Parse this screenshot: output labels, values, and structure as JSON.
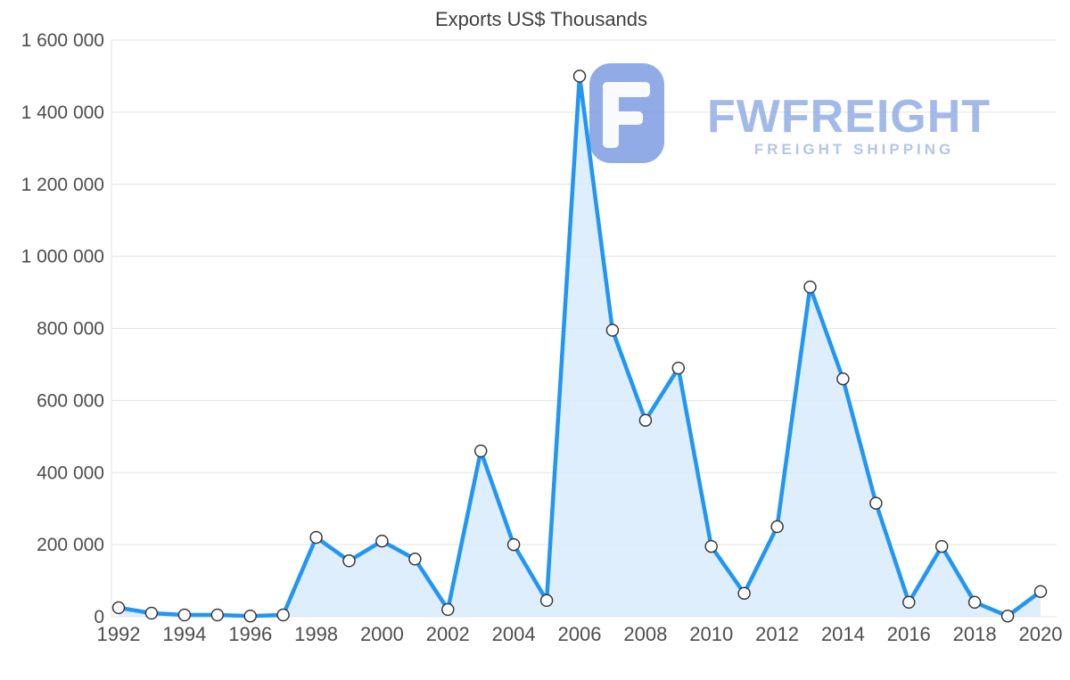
{
  "watermark": {
    "brand": "FWFREIGHT",
    "tagline": "FREIGHT SHIPPING"
  },
  "colors": {
    "line": "#2196f3",
    "fill": "#d6eafc",
    "grid": "#e3e3e3",
    "marker_fill": "#ffffff",
    "marker_stroke": "#3a3a3a",
    "axis_text": "#4d4d4d",
    "title_text": "#3f3f3f",
    "watermark_icon": "#7e9ce3",
    "watermark_text": "#8ca9e4"
  },
  "chart_data": {
    "type": "area",
    "title": "Exports US$ Thousands",
    "xlabel": "",
    "ylabel": "",
    "ylim": [
      0,
      1600000
    ],
    "grid": true,
    "legend": false,
    "x": [
      1992,
      1993,
      1994,
      1995,
      1996,
      1997,
      1998,
      1999,
      2000,
      2001,
      2002,
      2003,
      2004,
      2005,
      2006,
      2007,
      2008,
      2009,
      2010,
      2011,
      2012,
      2013,
      2014,
      2015,
      2016,
      2017,
      2018,
      2019,
      2020
    ],
    "values": [
      25000,
      10000,
      5000,
      5000,
      2000,
      5000,
      220000,
      155000,
      210000,
      160000,
      20000,
      460000,
      200000,
      45000,
      1500000,
      795000,
      545000,
      690000,
      195000,
      65000,
      250000,
      915000,
      660000,
      315000,
      40000,
      195000,
      40000,
      2000,
      70000
    ],
    "y_ticks": [
      {
        "value": 0,
        "label": "0"
      },
      {
        "value": 200000,
        "label": "200 000"
      },
      {
        "value": 400000,
        "label": "400 000"
      },
      {
        "value": 600000,
        "label": "600 000"
      },
      {
        "value": 800000,
        "label": "800 000"
      },
      {
        "value": 1000000,
        "label": "1 000 000"
      },
      {
        "value": 1200000,
        "label": "1 200 000"
      },
      {
        "value": 1400000,
        "label": "1 400 000"
      },
      {
        "value": 1600000,
        "label": "1 600 000"
      }
    ],
    "x_ticks": [
      "1992",
      "1994",
      "1996",
      "1998",
      "2000",
      "2002",
      "2004",
      "2006",
      "2008",
      "2010",
      "2012",
      "2014",
      "2016",
      "2018",
      "2020"
    ]
  }
}
